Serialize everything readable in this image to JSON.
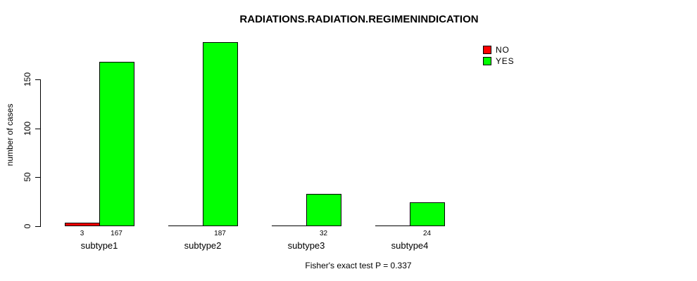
{
  "chart_data": {
    "type": "bar",
    "title": "RADIATIONS.RADIATION.REGIMENINDICATION",
    "xlabel": "",
    "ylabel": "number of cases",
    "categories": [
      "subtype1",
      "subtype2",
      "subtype3",
      "subtype4"
    ],
    "series": [
      {
        "name": "NO",
        "color": "#FF0000",
        "values": [
          3,
          0,
          0,
          0
        ],
        "value_labels": [
          "3",
          "",
          "",
          ""
        ]
      },
      {
        "name": "YES",
        "color": "#00FF00",
        "values": [
          167,
          187,
          32,
          24
        ],
        "value_labels": [
          "167",
          "187",
          "32",
          "24"
        ]
      }
    ],
    "yticks": [
      0,
      50,
      100,
      150
    ],
    "ylim": [
      0,
      190
    ],
    "grid": false,
    "legend_position": "top-right",
    "annotation": "Fisher's exact test P = 0.337"
  }
}
